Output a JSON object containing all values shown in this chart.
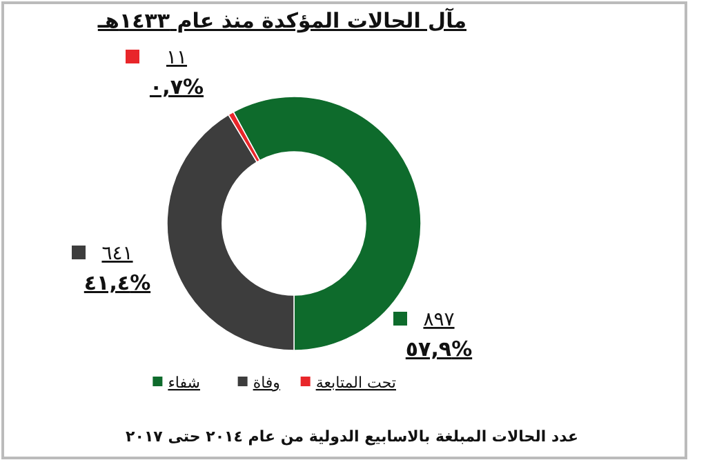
{
  "chart_data": {
    "type": "donut",
    "title": "مآل الحالات المؤكدة منذ عام ١٤٣٣هـ",
    "categories": [
      "شفاء",
      "وفاة",
      "تحت المتابعة"
    ],
    "values": [
      897,
      641,
      11
    ],
    "colors": [
      "#0e6b2c",
      "#3d3d3d",
      "#e8262a"
    ],
    "value_labels": [
      "٨٩٧",
      "٦٤١",
      "١١"
    ],
    "annotations": [
      "٥٧,٩%",
      "٤١,٤%",
      "٠,٧%",
      "عدد الحالات المبلغة بالاسابيع الدولية من عام ٢٠١٤ حتى ٢٠١٧"
    ],
    "legend": "bottom"
  }
}
